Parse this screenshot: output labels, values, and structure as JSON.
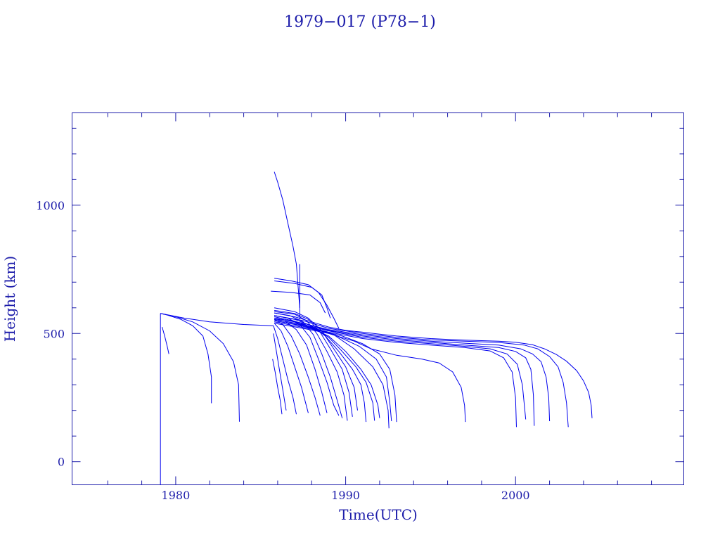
{
  "colors": {
    "axis": "#1c1caa",
    "trace": "#0000ee",
    "background": "#ffffff"
  },
  "chart_data": {
    "type": "line",
    "title": "1979−017 (P78−1)",
    "xlabel": "Time(UTC)",
    "ylabel": "Height (km)",
    "xlim": [
      1973.9,
      2009.9
    ],
    "ylim": [
      -90,
      1360
    ],
    "grid": false,
    "x_major_ticks": [
      1980,
      1990,
      2000
    ],
    "x_minor_ticks": [
      1976,
      1978,
      1982,
      1984,
      1986,
      1988,
      1992,
      1994,
      1996,
      1998,
      2002,
      2004,
      2006,
      2008
    ],
    "y_major_ticks": [
      0,
      500,
      1000
    ],
    "y_minor_ticks": [
      100,
      200,
      300,
      400,
      600,
      700,
      800,
      900,
      1100,
      1200,
      1300
    ],
    "x_tick_labels": [
      "1980",
      "1990",
      "2000"
    ],
    "y_tick_labels": [
      "0",
      "500",
      "1000"
    ],
    "series": [
      {
        "x": [
          1979.1,
          1979.1
        ],
        "y": [
          -90,
          578
        ]
      },
      {
        "x": [
          1979.1,
          1980.5,
          1982.0,
          1984.0,
          1985.75
        ],
        "y": [
          578,
          560,
          545,
          535,
          530
        ]
      },
      {
        "x": [
          1979.1,
          1979.5,
          1980.3,
          1981.0,
          1981.6,
          1981.9,
          1982.1,
          1982.1
        ],
        "y": [
          578,
          572,
          555,
          530,
          490,
          420,
          330,
          228
        ]
      },
      {
        "x": [
          1979.1,
          1980.0,
          1981.0,
          1982.0,
          1982.8,
          1983.4,
          1983.7,
          1983.75
        ],
        "y": [
          578,
          565,
          545,
          510,
          460,
          390,
          300,
          156
        ]
      },
      {
        "x": [
          1979.2,
          1979.35,
          1979.5,
          1979.6
        ],
        "y": [
          525,
          490,
          450,
          420
        ]
      },
      {
        "x": [
          1985.8,
          1986.0,
          1986.3,
          1986.6,
          1986.9,
          1987.1,
          1987.3
        ],
        "y": [
          1130,
          1090,
          1020,
          930,
          840,
          770,
          600
        ]
      },
      {
        "x": [
          1987.3,
          1987.3
        ],
        "y": [
          770,
          555
        ]
      },
      {
        "x": [
          1985.8,
          1986.8,
          1987.8,
          1988.4,
          1988.9,
          1989.3,
          1989.6
        ],
        "y": [
          715,
          705,
          690,
          660,
          610,
          560,
          520
        ]
      },
      {
        "x": [
          1985.8,
          1987.0,
          1988.0,
          1988.6,
          1988.9,
          1989.1
        ],
        "y": [
          705,
          695,
          680,
          650,
          600,
          560
        ]
      },
      {
        "x": [
          1985.6,
          1986.8,
          1987.9,
          1988.5,
          1988.8
        ],
        "y": [
          665,
          660,
          650,
          620,
          580
        ]
      },
      {
        "x": [
          1985.8,
          1987.0,
          1988.0,
          1989.0,
          1990.0,
          1991.0,
          1992.0,
          1993.0,
          1994.0,
          1995.0,
          1996.0,
          1997.0,
          1998.0,
          1999.0,
          2000.0,
          2001.0,
          2001.7,
          2002.4,
          2003.0,
          2003.6,
          2004.0,
          2004.3,
          2004.45,
          2004.5
        ],
        "y": [
          580,
          565,
          545,
          525,
          512,
          505,
          497,
          490,
          485,
          480,
          477,
          474,
          472,
          470,
          466,
          456,
          440,
          418,
          392,
          355,
          315,
          270,
          220,
          170
        ]
      },
      {
        "x": [
          1985.8,
          1987.5,
          1989.0,
          1991.0,
          1993.0,
          1995.0,
          1997.0,
          1999.0,
          2000.5,
          2001.3,
          2002.0,
          2002.5,
          2002.8,
          2003.0,
          2003.1
        ],
        "y": [
          570,
          550,
          520,
          500,
          485,
          475,
          470,
          465,
          455,
          440,
          410,
          370,
          310,
          230,
          135
        ]
      },
      {
        "x": [
          1985.8,
          1987.5,
          1989.0,
          1991.0,
          1993.0,
          1995.0,
          1997.0,
          1999.0,
          2000.3,
          2001.0,
          2001.5,
          2001.8,
          2001.95,
          2002.0
        ],
        "y": [
          560,
          540,
          515,
          495,
          480,
          470,
          462,
          455,
          440,
          420,
          390,
          330,
          250,
          158
        ]
      },
      {
        "x": [
          1985.8,
          1987.5,
          1989.0,
          1991.0,
          1993.0,
          1995.0,
          1997.0,
          1999.0,
          2000.0,
          2000.6,
          2000.9,
          2001.05,
          2001.1
        ],
        "y": [
          560,
          540,
          512,
          490,
          475,
          465,
          455,
          445,
          430,
          405,
          360,
          260,
          140
        ]
      },
      {
        "x": [
          1985.8,
          1987.5,
          1989.0,
          1991.0,
          1993.0,
          1995.0,
          1997.0,
          1998.5,
          1999.5,
          2000.1,
          2000.4,
          2000.6
        ],
        "y": [
          555,
          535,
          510,
          485,
          470,
          460,
          450,
          440,
          420,
          380,
          300,
          165
        ]
      },
      {
        "x": [
          1985.8,
          1987.5,
          1989.0,
          1991.0,
          1993.0,
          1995.0,
          1997.0,
          1998.5,
          1999.3,
          1999.8,
          2000.0,
          2000.05
        ],
        "y": [
          550,
          530,
          505,
          480,
          465,
          455,
          445,
          432,
          405,
          350,
          250,
          135
        ]
      },
      {
        "x": [
          1985.8,
          1987.5,
          1989.0,
          1990.5,
          1991.5,
          1993.0,
          1994.5,
          1995.5,
          1996.3,
          1996.8,
          1997.0,
          1997.05
        ],
        "y": [
          540,
          520,
          500,
          470,
          440,
          415,
          400,
          385,
          350,
          290,
          220,
          155
        ]
      },
      {
        "x": [
          1985.8,
          1987.0,
          1988.5,
          1989.8,
          1991.0,
          1992.0,
          1992.6,
          1992.9,
          1993.0
        ],
        "y": [
          545,
          530,
          510,
          490,
          460,
          420,
          360,
          260,
          155
        ]
      },
      {
        "x": [
          1985.8,
          1987.0,
          1988.3,
          1989.5,
          1990.8,
          1991.8,
          1992.4,
          1992.6,
          1992.7
        ],
        "y": [
          550,
          535,
          515,
          490,
          450,
          400,
          330,
          230,
          158
        ]
      },
      {
        "x": [
          1985.8,
          1987.0,
          1988.2,
          1989.3,
          1990.5,
          1991.6,
          1992.2,
          1992.5,
          1992.55
        ],
        "y": [
          555,
          540,
          520,
          495,
          440,
          370,
          300,
          200,
          130
        ]
      },
      {
        "x": [
          1985.8,
          1987.0,
          1988.0,
          1989.0,
          1990.0,
          1990.9,
          1991.5,
          1991.9,
          1992.0
        ],
        "y": [
          560,
          545,
          520,
          490,
          430,
          360,
          300,
          220,
          170
        ]
      },
      {
        "x": [
          1985.8,
          1987.0,
          1988.0,
          1989.0,
          1989.8,
          1990.6,
          1991.2,
          1991.6,
          1991.7
        ],
        "y": [
          565,
          548,
          525,
          485,
          430,
          370,
          310,
          230,
          160
        ]
      },
      {
        "x": [
          1985.8,
          1987.0,
          1988.0,
          1988.8,
          1989.6,
          1990.4,
          1990.9,
          1991.1,
          1991.2
        ],
        "y": [
          570,
          555,
          530,
          490,
          430,
          360,
          300,
          230,
          155
        ]
      },
      {
        "x": [
          1985.8,
          1987.0,
          1987.8,
          1988.6,
          1989.3,
          1990.0,
          1990.5,
          1990.7
        ],
        "y": [
          600,
          585,
          560,
          510,
          440,
          370,
          290,
          200
        ]
      },
      {
        "x": [
          1985.8,
          1987.0,
          1987.8,
          1988.5,
          1989.1,
          1989.8,
          1990.2,
          1990.4
        ],
        "y": [
          590,
          578,
          555,
          505,
          440,
          360,
          270,
          175
        ]
      },
      {
        "x": [
          1985.8,
          1987.0,
          1987.7,
          1988.3,
          1988.9,
          1989.5,
          1989.9,
          1990.1
        ],
        "y": [
          585,
          575,
          550,
          500,
          430,
          350,
          260,
          160
        ]
      },
      {
        "x": [
          1985.8,
          1986.7,
          1987.5,
          1988.1,
          1988.6,
          1989.1,
          1989.5,
          1989.8
        ],
        "y": [
          580,
          570,
          545,
          495,
          420,
          330,
          240,
          170
        ]
      },
      {
        "x": [
          1985.8,
          1986.6,
          1987.3,
          1987.9,
          1988.4,
          1988.9,
          1989.3,
          1989.6
        ],
        "y": [
          570,
          560,
          535,
          485,
          400,
          310,
          220,
          180
        ]
      },
      {
        "x": [
          1985.8,
          1986.5,
          1987.1,
          1987.7,
          1988.2,
          1988.6,
          1988.9
        ],
        "y": [
          560,
          545,
          515,
          455,
          360,
          270,
          190
        ]
      },
      {
        "x": [
          1985.8,
          1986.3,
          1986.8,
          1987.3,
          1987.8,
          1988.2,
          1988.5
        ],
        "y": [
          555,
          535,
          490,
          420,
          330,
          250,
          180
        ]
      },
      {
        "x": [
          1985.8,
          1986.2,
          1986.6,
          1987.0,
          1987.4,
          1987.8
        ],
        "y": [
          540,
          510,
          450,
          370,
          290,
          190
        ]
      },
      {
        "x": [
          1985.75,
          1986.0,
          1986.3,
          1986.6,
          1986.9,
          1987.1
        ],
        "y": [
          530,
          480,
          400,
          320,
          250,
          185
        ]
      },
      {
        "x": [
          1985.75,
          1985.9,
          1986.1,
          1986.3,
          1986.5
        ],
        "y": [
          500,
          440,
          360,
          280,
          200
        ]
      },
      {
        "x": [
          1985.7,
          1985.85,
          1986.0,
          1986.15,
          1986.25
        ],
        "y": [
          400,
          350,
          290,
          240,
          185
        ]
      }
    ]
  }
}
